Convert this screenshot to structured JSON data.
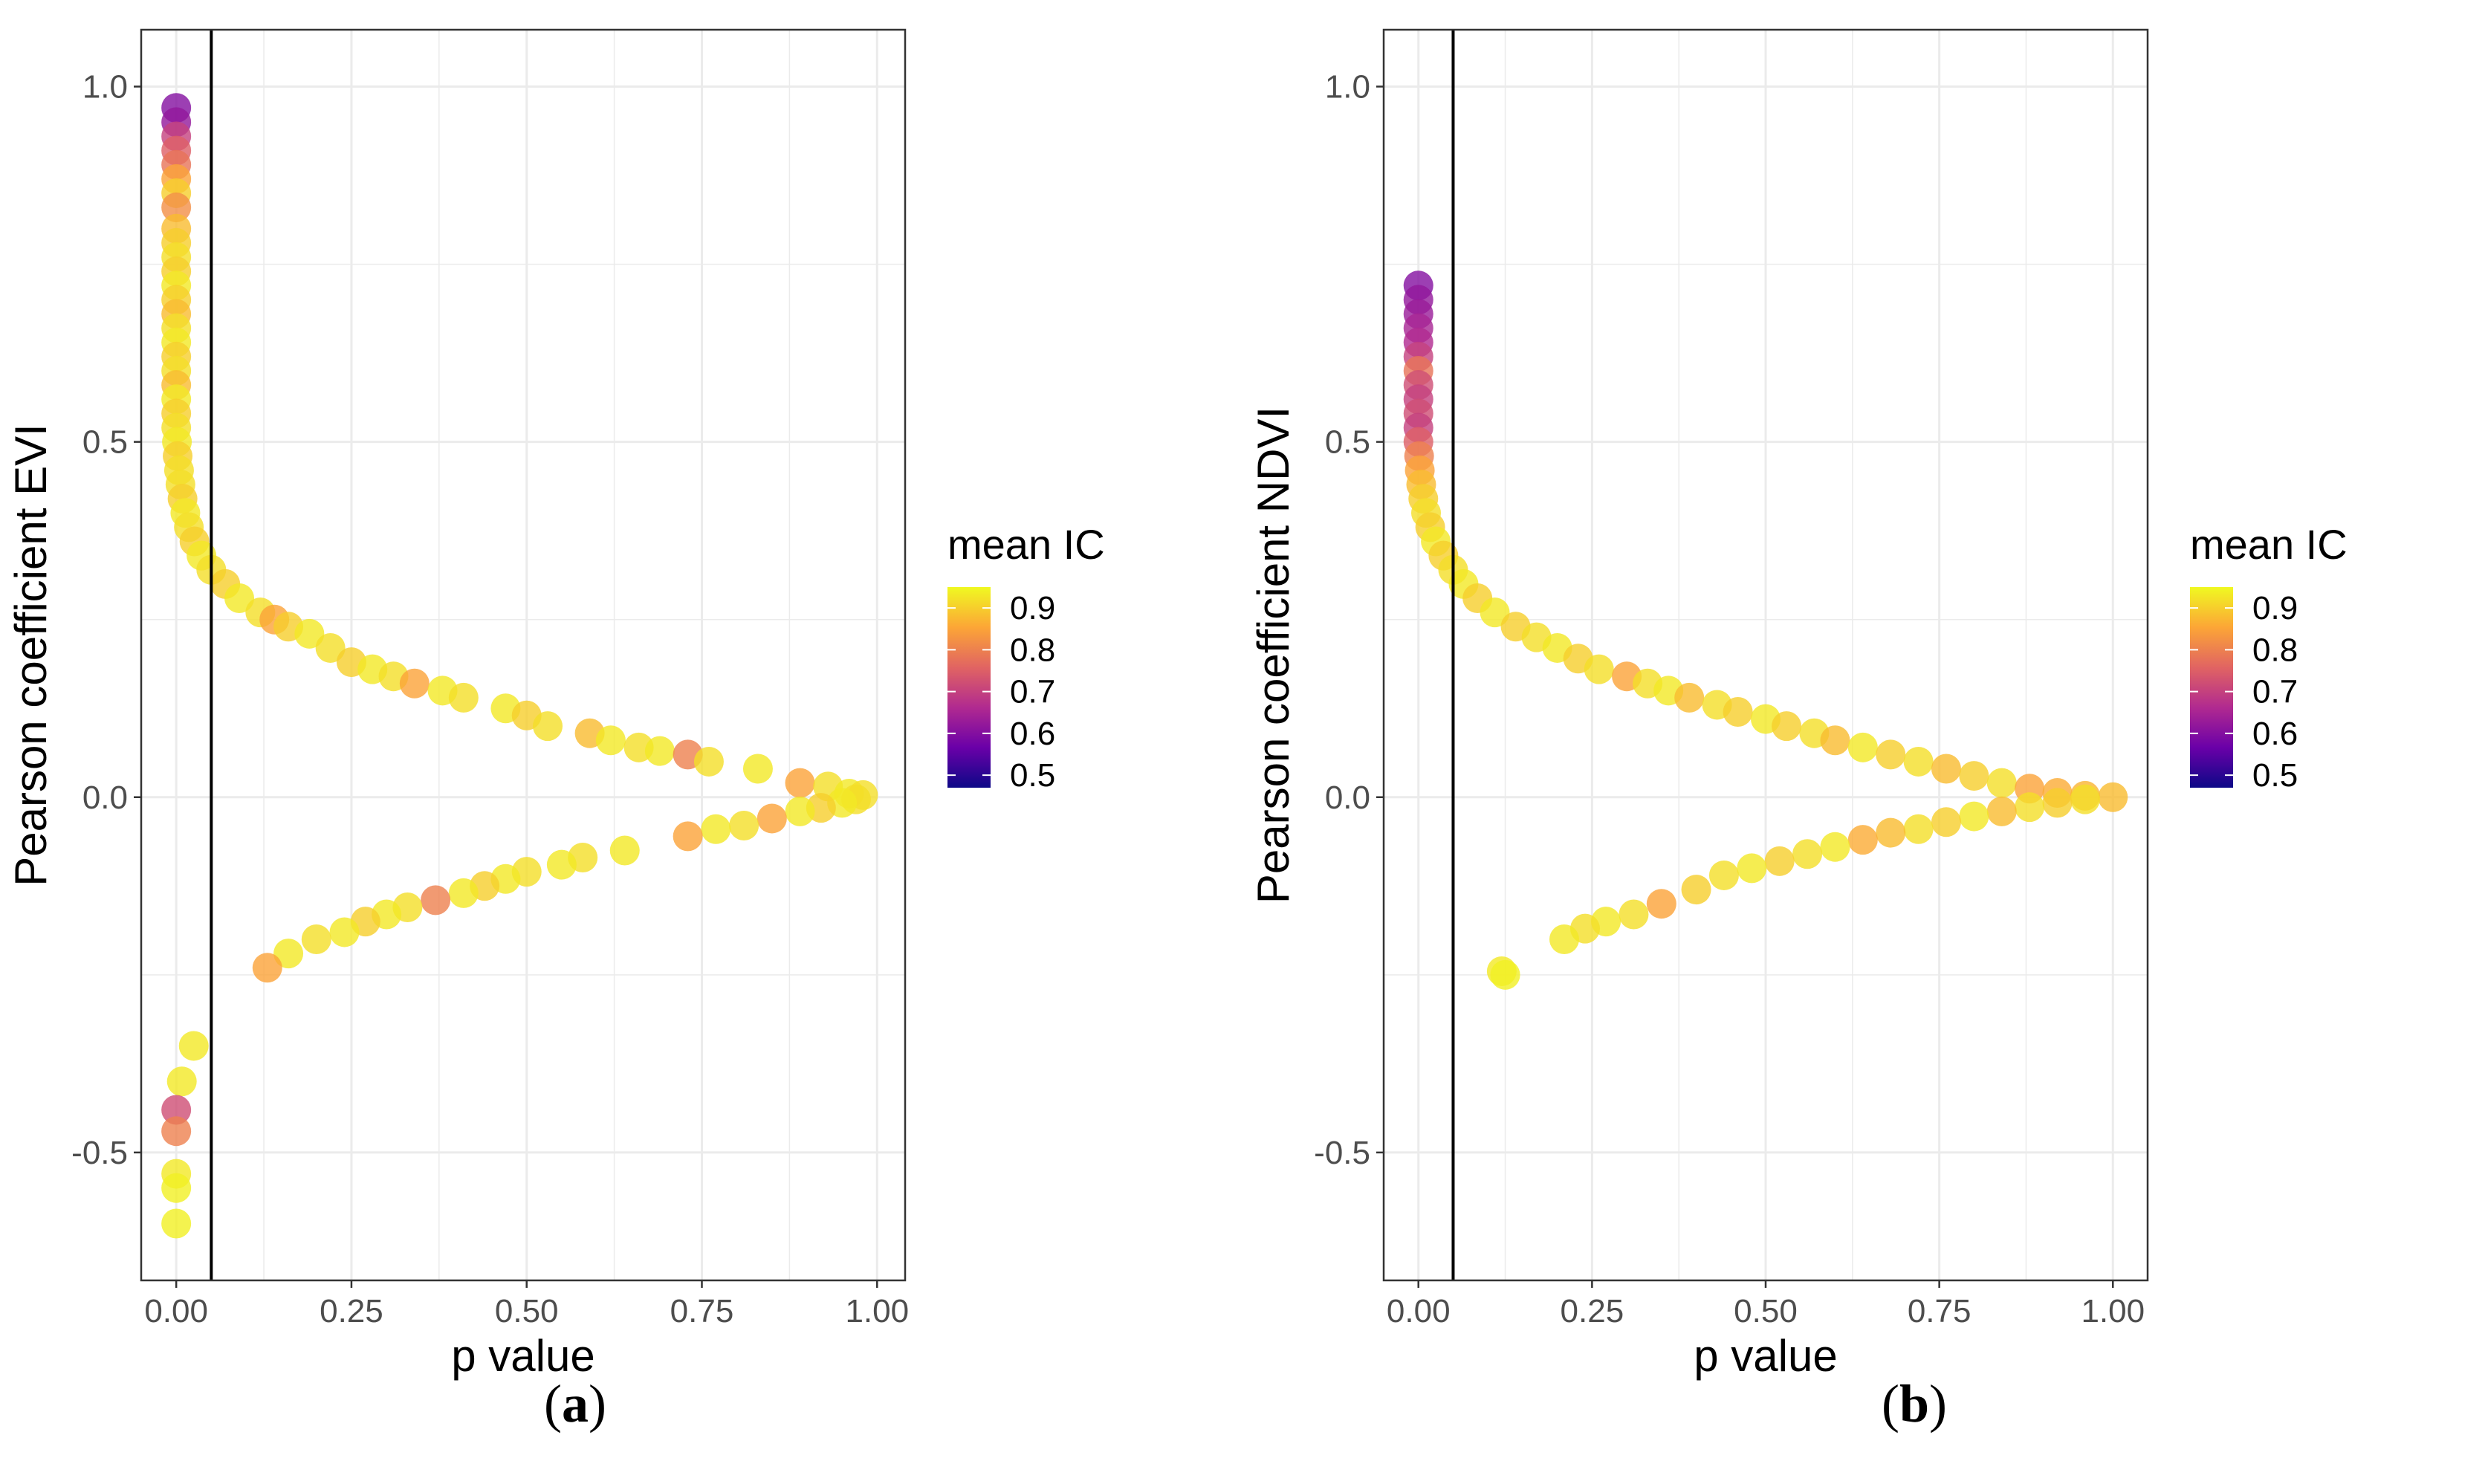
{
  "colors": {
    "grid": "#ebebeb",
    "border": "#333333",
    "threshold_line": "#000000",
    "colorscale": [
      "#0d0887",
      "#6a00a8",
      "#b12a90",
      "#e16462",
      "#fca636",
      "#f0f921"
    ]
  },
  "chart_data": [
    {
      "type": "scatter",
      "panel_label": "a",
      "title": "",
      "xlabel": "p value",
      "ylabel": "Pearson coefficient EVI",
      "xlim": [
        -0.05,
        1.04
      ],
      "ylim": [
        -0.68,
        1.08
      ],
      "xticks": [
        0.0,
        0.25,
        0.5,
        0.75,
        1.0
      ],
      "xtick_labels": [
        "0.00",
        "0.25",
        "0.50",
        "0.75",
        "1.00"
      ],
      "yticks": [
        -0.5,
        0.0,
        0.5,
        1.0
      ],
      "ytick_labels": [
        "-0.5",
        "0.0",
        "0.5",
        "1.0"
      ],
      "threshold_x": 0.05,
      "grid": true,
      "legend": {
        "title": "mean IC",
        "position": "right",
        "range": [
          0.47,
          0.95
        ],
        "breaks": [
          0.9,
          0.8,
          0.7,
          0.6,
          0.5
        ],
        "break_labels": [
          "0.9",
          "0.8",
          "0.7",
          "0.6",
          "0.5"
        ]
      },
      "points": [
        {
          "x": 0.0,
          "y": 0.97,
          "c": 0.6
        },
        {
          "x": 0.0,
          "y": 0.95,
          "c": 0.62
        },
        {
          "x": 0.0,
          "y": 0.93,
          "c": 0.7
        },
        {
          "x": 0.0,
          "y": 0.91,
          "c": 0.75
        },
        {
          "x": 0.0,
          "y": 0.89,
          "c": 0.78
        },
        {
          "x": 0.0,
          "y": 0.87,
          "c": 0.85
        },
        {
          "x": 0.0,
          "y": 0.85,
          "c": 0.9
        },
        {
          "x": 0.0,
          "y": 0.83,
          "c": 0.82
        },
        {
          "x": 0.0,
          "y": 0.8,
          "c": 0.88
        },
        {
          "x": 0.0,
          "y": 0.78,
          "c": 0.9
        },
        {
          "x": 0.0,
          "y": 0.76,
          "c": 0.92
        },
        {
          "x": 0.0,
          "y": 0.74,
          "c": 0.9
        },
        {
          "x": 0.0,
          "y": 0.72,
          "c": 0.93
        },
        {
          "x": 0.0,
          "y": 0.7,
          "c": 0.9
        },
        {
          "x": 0.0,
          "y": 0.68,
          "c": 0.88
        },
        {
          "x": 0.0,
          "y": 0.66,
          "c": 0.92
        },
        {
          "x": 0.0,
          "y": 0.64,
          "c": 0.93
        },
        {
          "x": 0.0,
          "y": 0.62,
          "c": 0.9
        },
        {
          "x": 0.0,
          "y": 0.6,
          "c": 0.92
        },
        {
          "x": 0.0,
          "y": 0.58,
          "c": 0.88
        },
        {
          "x": 0.0,
          "y": 0.56,
          "c": 0.93
        },
        {
          "x": 0.0,
          "y": 0.54,
          "c": 0.9
        },
        {
          "x": 0.0,
          "y": 0.52,
          "c": 0.92
        },
        {
          "x": 0.001,
          "y": 0.5,
          "c": 0.93
        },
        {
          "x": 0.002,
          "y": 0.48,
          "c": 0.9
        },
        {
          "x": 0.004,
          "y": 0.46,
          "c": 0.92
        },
        {
          "x": 0.006,
          "y": 0.44,
          "c": 0.92
        },
        {
          "x": 0.009,
          "y": 0.42,
          "c": 0.9
        },
        {
          "x": 0.013,
          "y": 0.4,
          "c": 0.93
        },
        {
          "x": 0.018,
          "y": 0.38,
          "c": 0.92
        },
        {
          "x": 0.026,
          "y": 0.36,
          "c": 0.9
        },
        {
          "x": 0.036,
          "y": 0.34,
          "c": 0.93
        },
        {
          "x": 0.05,
          "y": 0.32,
          "c": 0.92
        },
        {
          "x": 0.07,
          "y": 0.3,
          "c": 0.9
        },
        {
          "x": 0.09,
          "y": 0.28,
          "c": 0.93
        },
        {
          "x": 0.12,
          "y": 0.26,
          "c": 0.92
        },
        {
          "x": 0.14,
          "y": 0.25,
          "c": 0.85
        },
        {
          "x": 0.16,
          "y": 0.24,
          "c": 0.9
        },
        {
          "x": 0.19,
          "y": 0.23,
          "c": 0.93
        },
        {
          "x": 0.22,
          "y": 0.21,
          "c": 0.92
        },
        {
          "x": 0.25,
          "y": 0.19,
          "c": 0.9
        },
        {
          "x": 0.28,
          "y": 0.18,
          "c": 0.93
        },
        {
          "x": 0.31,
          "y": 0.17,
          "c": 0.92
        },
        {
          "x": 0.34,
          "y": 0.16,
          "c": 0.85
        },
        {
          "x": 0.38,
          "y": 0.15,
          "c": 0.93
        },
        {
          "x": 0.41,
          "y": 0.14,
          "c": 0.92
        },
        {
          "x": 0.47,
          "y": 0.125,
          "c": 0.93
        },
        {
          "x": 0.5,
          "y": 0.115,
          "c": 0.9
        },
        {
          "x": 0.53,
          "y": 0.1,
          "c": 0.92
        },
        {
          "x": 0.59,
          "y": 0.09,
          "c": 0.88
        },
        {
          "x": 0.62,
          "y": 0.08,
          "c": 0.93
        },
        {
          "x": 0.66,
          "y": 0.07,
          "c": 0.92
        },
        {
          "x": 0.69,
          "y": 0.065,
          "c": 0.93
        },
        {
          "x": 0.73,
          "y": 0.06,
          "c": 0.8
        },
        {
          "x": 0.76,
          "y": 0.05,
          "c": 0.92
        },
        {
          "x": 0.83,
          "y": 0.04,
          "c": 0.93
        },
        {
          "x": 0.89,
          "y": 0.02,
          "c": 0.85
        },
        {
          "x": 0.93,
          "y": 0.015,
          "c": 0.92
        },
        {
          "x": 0.96,
          "y": 0.005,
          "c": 0.93
        },
        {
          "x": 0.98,
          "y": 0.003,
          "c": 0.92
        },
        {
          "x": 0.97,
          "y": -0.003,
          "c": 0.92
        },
        {
          "x": 0.95,
          "y": -0.008,
          "c": 0.93
        },
        {
          "x": 0.92,
          "y": -0.015,
          "c": 0.9
        },
        {
          "x": 0.89,
          "y": -0.02,
          "c": 0.93
        },
        {
          "x": 0.85,
          "y": -0.03,
          "c": 0.85
        },
        {
          "x": 0.81,
          "y": -0.04,
          "c": 0.92
        },
        {
          "x": 0.77,
          "y": -0.045,
          "c": 0.93
        },
        {
          "x": 0.73,
          "y": -0.055,
          "c": 0.85
        },
        {
          "x": 0.64,
          "y": -0.075,
          "c": 0.93
        },
        {
          "x": 0.58,
          "y": -0.085,
          "c": 0.92
        },
        {
          "x": 0.55,
          "y": -0.095,
          "c": 0.93
        },
        {
          "x": 0.5,
          "y": -0.105,
          "c": 0.92
        },
        {
          "x": 0.47,
          "y": -0.115,
          "c": 0.93
        },
        {
          "x": 0.44,
          "y": -0.125,
          "c": 0.9
        },
        {
          "x": 0.41,
          "y": -0.135,
          "c": 0.93
        },
        {
          "x": 0.37,
          "y": -0.145,
          "c": 0.8
        },
        {
          "x": 0.33,
          "y": -0.155,
          "c": 0.92
        },
        {
          "x": 0.3,
          "y": -0.165,
          "c": 0.93
        },
        {
          "x": 0.27,
          "y": -0.175,
          "c": 0.9
        },
        {
          "x": 0.24,
          "y": -0.19,
          "c": 0.93
        },
        {
          "x": 0.2,
          "y": -0.2,
          "c": 0.92
        },
        {
          "x": 0.16,
          "y": -0.22,
          "c": 0.93
        },
        {
          "x": 0.13,
          "y": -0.24,
          "c": 0.85
        },
        {
          "x": 0.025,
          "y": -0.35,
          "c": 0.93
        },
        {
          "x": 0.008,
          "y": -0.4,
          "c": 0.93
        },
        {
          "x": 0.0,
          "y": -0.44,
          "c": 0.72
        },
        {
          "x": 0.0,
          "y": -0.47,
          "c": 0.8
        },
        {
          "x": 0.0,
          "y": -0.53,
          "c": 0.93
        },
        {
          "x": 0.0,
          "y": -0.55,
          "c": 0.94
        },
        {
          "x": 0.0,
          "y": -0.6,
          "c": 0.94
        }
      ]
    },
    {
      "type": "scatter",
      "panel_label": "b",
      "title": "",
      "xlabel": "p value",
      "ylabel": "Pearson coefficient NDVI",
      "xlim": [
        -0.05,
        1.05
      ],
      "ylim": [
        -0.68,
        1.08
      ],
      "xticks": [
        0.0,
        0.25,
        0.5,
        0.75,
        1.0
      ],
      "xtick_labels": [
        "0.00",
        "0.25",
        "0.50",
        "0.75",
        "1.00"
      ],
      "yticks": [
        -0.5,
        0.0,
        0.5,
        1.0
      ],
      "ytick_labels": [
        "-0.5",
        "0.0",
        "0.5",
        "1.0"
      ],
      "threshold_x": 0.05,
      "grid": true,
      "legend": {
        "title": "mean IC",
        "position": "right",
        "range": [
          0.47,
          0.95
        ],
        "breaks": [
          0.9,
          0.8,
          0.7,
          0.6,
          0.5
        ],
        "break_labels": [
          "0.9",
          "0.8",
          "0.7",
          "0.6",
          "0.5"
        ]
      },
      "points": [
        {
          "x": 0.0,
          "y": 0.72,
          "c": 0.6
        },
        {
          "x": 0.0,
          "y": 0.7,
          "c": 0.62
        },
        {
          "x": 0.0,
          "y": 0.68,
          "c": 0.63
        },
        {
          "x": 0.0,
          "y": 0.66,
          "c": 0.65
        },
        {
          "x": 0.0,
          "y": 0.64,
          "c": 0.66
        },
        {
          "x": 0.0,
          "y": 0.62,
          "c": 0.7
        },
        {
          "x": 0.0,
          "y": 0.6,
          "c": 0.78
        },
        {
          "x": 0.0,
          "y": 0.58,
          "c": 0.72
        },
        {
          "x": 0.0,
          "y": 0.56,
          "c": 0.7
        },
        {
          "x": 0.0,
          "y": 0.54,
          "c": 0.72
        },
        {
          "x": 0.0,
          "y": 0.52,
          "c": 0.7
        },
        {
          "x": 0.0,
          "y": 0.5,
          "c": 0.75
        },
        {
          "x": 0.001,
          "y": 0.48,
          "c": 0.8
        },
        {
          "x": 0.002,
          "y": 0.46,
          "c": 0.85
        },
        {
          "x": 0.004,
          "y": 0.44,
          "c": 0.88
        },
        {
          "x": 0.007,
          "y": 0.42,
          "c": 0.9
        },
        {
          "x": 0.011,
          "y": 0.4,
          "c": 0.92
        },
        {
          "x": 0.017,
          "y": 0.38,
          "c": 0.9
        },
        {
          "x": 0.025,
          "y": 0.36,
          "c": 0.93
        },
        {
          "x": 0.036,
          "y": 0.34,
          "c": 0.9
        },
        {
          "x": 0.05,
          "y": 0.32,
          "c": 0.92
        },
        {
          "x": 0.065,
          "y": 0.3,
          "c": 0.93
        },
        {
          "x": 0.085,
          "y": 0.28,
          "c": 0.9
        },
        {
          "x": 0.11,
          "y": 0.26,
          "c": 0.93
        },
        {
          "x": 0.14,
          "y": 0.24,
          "c": 0.9
        },
        {
          "x": 0.17,
          "y": 0.225,
          "c": 0.92
        },
        {
          "x": 0.2,
          "y": 0.21,
          "c": 0.93
        },
        {
          "x": 0.23,
          "y": 0.195,
          "c": 0.9
        },
        {
          "x": 0.26,
          "y": 0.18,
          "c": 0.92
        },
        {
          "x": 0.3,
          "y": 0.17,
          "c": 0.85
        },
        {
          "x": 0.33,
          "y": 0.16,
          "c": 0.92
        },
        {
          "x": 0.36,
          "y": 0.15,
          "c": 0.93
        },
        {
          "x": 0.39,
          "y": 0.14,
          "c": 0.88
        },
        {
          "x": 0.43,
          "y": 0.13,
          "c": 0.92
        },
        {
          "x": 0.46,
          "y": 0.12,
          "c": 0.9
        },
        {
          "x": 0.5,
          "y": 0.11,
          "c": 0.93
        },
        {
          "x": 0.53,
          "y": 0.1,
          "c": 0.9
        },
        {
          "x": 0.57,
          "y": 0.09,
          "c": 0.92
        },
        {
          "x": 0.6,
          "y": 0.08,
          "c": 0.88
        },
        {
          "x": 0.64,
          "y": 0.07,
          "c": 0.93
        },
        {
          "x": 0.68,
          "y": 0.06,
          "c": 0.9
        },
        {
          "x": 0.72,
          "y": 0.05,
          "c": 0.92
        },
        {
          "x": 0.76,
          "y": 0.04,
          "c": 0.88
        },
        {
          "x": 0.8,
          "y": 0.03,
          "c": 0.9
        },
        {
          "x": 0.84,
          "y": 0.02,
          "c": 0.92
        },
        {
          "x": 0.88,
          "y": 0.012,
          "c": 0.85
        },
        {
          "x": 0.92,
          "y": 0.006,
          "c": 0.86
        },
        {
          "x": 0.96,
          "y": 0.002,
          "c": 0.87
        },
        {
          "x": 1.0,
          "y": 0.0,
          "c": 0.88
        },
        {
          "x": 0.96,
          "y": -0.003,
          "c": 0.92
        },
        {
          "x": 0.92,
          "y": -0.008,
          "c": 0.9
        },
        {
          "x": 0.88,
          "y": -0.014,
          "c": 0.92
        },
        {
          "x": 0.84,
          "y": -0.02,
          "c": 0.88
        },
        {
          "x": 0.8,
          "y": -0.027,
          "c": 0.93
        },
        {
          "x": 0.76,
          "y": -0.035,
          "c": 0.9
        },
        {
          "x": 0.72,
          "y": -0.045,
          "c": 0.92
        },
        {
          "x": 0.68,
          "y": -0.05,
          "c": 0.88
        },
        {
          "x": 0.64,
          "y": -0.06,
          "c": 0.86
        },
        {
          "x": 0.6,
          "y": -0.07,
          "c": 0.93
        },
        {
          "x": 0.56,
          "y": -0.08,
          "c": 0.92
        },
        {
          "x": 0.52,
          "y": -0.09,
          "c": 0.9
        },
        {
          "x": 0.48,
          "y": -0.1,
          "c": 0.93
        },
        {
          "x": 0.44,
          "y": -0.11,
          "c": 0.92
        },
        {
          "x": 0.4,
          "y": -0.13,
          "c": 0.9
        },
        {
          "x": 0.35,
          "y": -0.15,
          "c": 0.85
        },
        {
          "x": 0.31,
          "y": -0.165,
          "c": 0.92
        },
        {
          "x": 0.27,
          "y": -0.175,
          "c": 0.93
        },
        {
          "x": 0.24,
          "y": -0.185,
          "c": 0.92
        },
        {
          "x": 0.21,
          "y": -0.2,
          "c": 0.93
        },
        {
          "x": 0.12,
          "y": -0.245,
          "c": 0.93
        },
        {
          "x": 0.125,
          "y": -0.25,
          "c": 0.94
        }
      ]
    }
  ]
}
